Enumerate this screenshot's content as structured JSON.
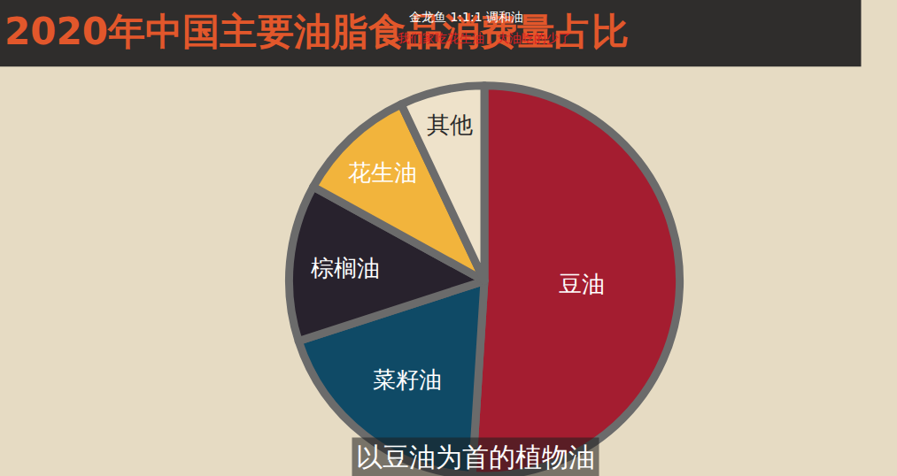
{
  "chart_data": {
    "type": "pie",
    "title": "2020年中国主要油脂食品消费量占比",
    "categories": [
      "豆油",
      "菜籽油",
      "棕榈油",
      "花生油",
      "其他"
    ],
    "values": [
      51,
      19,
      13,
      10,
      7
    ],
    "colors": [
      "#a41d30",
      "#0f4a66",
      "#28222d",
      "#f2b43c",
      "#eee2ca"
    ],
    "annotations": [
      "金龙鱼 1:1:1 调和油",
      "我们家吃花生油，大油吃的少了",
      "以豆油为首的植物油"
    ]
  }
}
